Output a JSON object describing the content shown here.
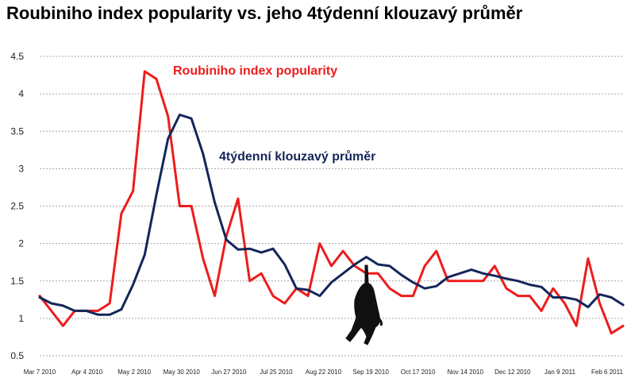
{
  "chart_data": {
    "type": "line",
    "title": "Roubiniho index popularity vs. jeho 4týdenní klouzavý průměr",
    "xlabel": "",
    "ylabel": "",
    "ylim": [
      0.5,
      4.5
    ],
    "yticks": [
      "0.5",
      "1",
      "1.5",
      "2",
      "2.5",
      "3",
      "3.5",
      "4",
      "4.5"
    ],
    "grid": "horizontal dashed",
    "x_tick_labels": [
      "Mar 7 2010",
      "Apr 4 2010",
      "May 2 2010",
      "May 30 2010",
      "Jun 27 2010",
      "Jul 25 2010",
      "Aug 22 2010",
      "Sep 19 2010",
      "Oct 17 2010",
      "Nov 14 2010",
      "Dec 12 2010",
      "Jan 9 2011",
      "Feb 6 2011"
    ],
    "series": [
      {
        "name": "Roubiniho index popularity",
        "color": "#ee1c1c",
        "values": [
          1.3,
          1.1,
          0.9,
          1.1,
          1.1,
          1.1,
          1.2,
          2.4,
          2.7,
          4.3,
          4.2,
          3.7,
          2.5,
          2.5,
          1.8,
          1.3,
          2.1,
          2.6,
          1.5,
          1.6,
          1.3,
          1.2,
          1.4,
          1.3,
          2.0,
          1.7,
          1.9,
          1.7,
          1.6,
          1.6,
          1.4,
          1.3,
          1.3,
          1.7,
          1.9,
          1.5,
          1.5,
          1.5,
          1.5,
          1.7,
          1.4,
          1.3,
          1.3,
          1.1,
          1.4,
          1.2,
          0.9,
          1.8,
          1.2,
          0.8,
          0.9
        ]
      },
      {
        "name": "4týdenní klouzavý průměr",
        "color": "#14265a",
        "values": [
          1.28,
          1.2,
          1.17,
          1.1,
          1.1,
          1.05,
          1.05,
          1.12,
          1.45,
          1.85,
          2.65,
          3.4,
          3.72,
          3.67,
          3.2,
          2.55,
          2.05,
          1.92,
          1.93,
          1.88,
          1.93,
          1.72,
          1.4,
          1.38,
          1.3,
          1.48,
          1.6,
          1.72,
          1.82,
          1.72,
          1.7,
          1.58,
          1.48,
          1.4,
          1.43,
          1.55,
          1.6,
          1.65,
          1.6,
          1.57,
          1.53,
          1.5,
          1.45,
          1.42,
          1.28,
          1.28,
          1.25,
          1.15,
          1.32,
          1.28,
          1.18
        ]
      }
    ]
  },
  "colors": {
    "grid": "#a6a6a6",
    "monkey": "#111111"
  },
  "icons": {
    "decoration": "monkey-icon"
  }
}
